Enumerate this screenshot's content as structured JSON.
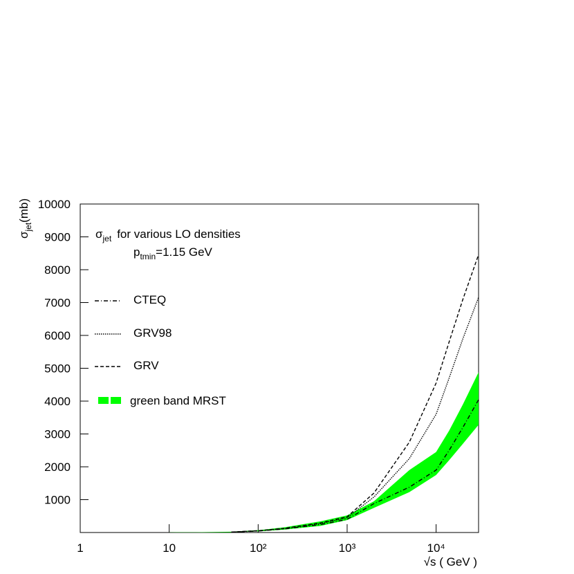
{
  "chart_data": {
    "type": "line",
    "xscale": "log",
    "annotation": {
      "symbol": "σ",
      "subscript": "jet",
      "text": "for various LO densities"
    },
    "annotation2": {
      "symbol": "p",
      "subscript": "tmin",
      "text": "=1.15 GeV"
    },
    "y_label": {
      "symbol": "σ",
      "subscript": "jet",
      "text": "(mb)"
    },
    "x_label": "√s ( GeV )",
    "xlim": [
      1,
      30000
    ],
    "ylim": [
      0,
      10000
    ],
    "xticks": [
      1,
      10,
      {
        "value": 100,
        "label": "10²"
      },
      {
        "value": 1000,
        "label": "10³"
      },
      {
        "value": 10000,
        "label": "10⁴"
      }
    ],
    "yticks": [
      1000,
      2000,
      3000,
      4000,
      5000,
      6000,
      7000,
      8000,
      9000,
      10000
    ],
    "x": [
      10,
      20,
      50,
      100,
      200,
      500,
      1000,
      2000,
      5000,
      10000,
      14000,
      20000,
      30000
    ],
    "series": [
      {
        "name": "CTEQ",
        "color": "#000000",
        "style": "dashdot",
        "values": [
          null,
          null,
          12,
          45,
          110,
          240,
          400,
          880,
          1380,
          1900,
          2500,
          3200,
          4040
        ]
      },
      {
        "name": "GRV98",
        "color": "#000000",
        "style": "dotted",
        "values": [
          null,
          null,
          15,
          50,
          120,
          270,
          450,
          1080,
          2250,
          3600,
          4700,
          5900,
          7160
        ]
      },
      {
        "name": "GRV",
        "color": "#000000",
        "style": "dashed",
        "values": [
          null,
          null,
          15,
          55,
          130,
          290,
          480,
          1200,
          2750,
          4550,
          5800,
          7100,
          8460
        ]
      }
    ],
    "band": {
      "name": "green band MRST",
      "color": "#00ff00",
      "upper": [
        3,
        8,
        25,
        70,
        160,
        340,
        520,
        950,
        1900,
        2450,
        3100,
        3900,
        4880
      ],
      "lower": [
        0,
        2,
        8,
        35,
        90,
        200,
        380,
        750,
        1230,
        1750,
        2200,
        2700,
        3280
      ]
    }
  }
}
